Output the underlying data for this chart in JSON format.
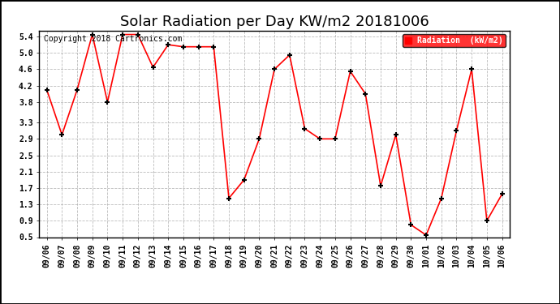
{
  "title": "Solar Radiation per Day KW/m2 20181006",
  "copyright_text": "Copyright 2018 Cartronics.com",
  "legend_label": "Radiation  (kW/m2)",
  "legend_bg": "#ff0000",
  "legend_text_color": "#ffffff",
  "dates": [
    "09/06",
    "09/07",
    "09/08",
    "09/09",
    "09/10",
    "09/11",
    "09/12",
    "09/13",
    "09/14",
    "09/15",
    "09/16",
    "09/17",
    "09/18",
    "09/19",
    "09/20",
    "09/21",
    "09/22",
    "09/23",
    "09/24",
    "09/25",
    "09/26",
    "09/27",
    "09/28",
    "09/29",
    "09/30",
    "10/01",
    "10/02",
    "10/03",
    "10/04",
    "10/05",
    "10/06"
  ],
  "values": [
    4.1,
    3.0,
    4.1,
    5.45,
    3.8,
    5.45,
    5.45,
    4.65,
    5.2,
    5.15,
    5.15,
    5.15,
    1.45,
    1.9,
    2.9,
    4.6,
    4.95,
    3.15,
    2.9,
    2.9,
    4.55,
    4.0,
    1.75,
    3.0,
    0.8,
    0.55,
    1.45,
    3.1,
    4.6,
    0.9,
    1.55
  ],
  "line_color": "#ff0000",
  "marker_color": "#000000",
  "bg_color": "#ffffff",
  "grid_color": "#aaaaaa",
  "border_color": "#000000",
  "ylim_min": 0.5,
  "ylim_max": 5.55,
  "yticks": [
    0.5,
    0.9,
    1.3,
    1.7,
    2.1,
    2.5,
    2.9,
    3.3,
    3.8,
    4.2,
    4.6,
    5.0,
    5.4
  ],
  "title_fontsize": 13,
  "tick_fontsize": 7,
  "copyright_fontsize": 7,
  "legend_fontsize": 7
}
